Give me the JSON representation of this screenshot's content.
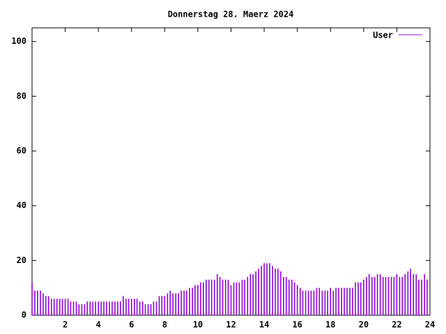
{
  "chart_data": {
    "type": "impulse",
    "title": "Donnerstag 28. Maerz 2024",
    "x": [
      0,
      0.17,
      0.33,
      0.5,
      0.67,
      0.83,
      1,
      1.17,
      1.33,
      1.5,
      1.67,
      1.83,
      2,
      2.17,
      2.33,
      2.5,
      2.67,
      2.83,
      3,
      3.17,
      3.33,
      3.5,
      3.67,
      3.83,
      4,
      4.17,
      4.33,
      4.5,
      4.67,
      4.83,
      5,
      5.17,
      5.33,
      5.5,
      5.67,
      5.83,
      6,
      6.17,
      6.33,
      6.5,
      6.67,
      6.83,
      7,
      7.17,
      7.33,
      7.5,
      7.67,
      7.83,
      8,
      8.17,
      8.33,
      8.5,
      8.67,
      8.83,
      9,
      9.17,
      9.33,
      9.5,
      9.67,
      9.83,
      10,
      10.17,
      10.33,
      10.5,
      10.67,
      10.83,
      11,
      11.17,
      11.33,
      11.5,
      11.67,
      11.83,
      12,
      12.17,
      12.33,
      12.5,
      12.67,
      12.83,
      13,
      13.17,
      13.33,
      13.5,
      13.67,
      13.83,
      14,
      14.17,
      14.33,
      14.5,
      14.67,
      14.83,
      15,
      15.17,
      15.33,
      15.5,
      15.67,
      15.83,
      16,
      16.17,
      16.33,
      16.5,
      16.67,
      16.83,
      17,
      17.17,
      17.33,
      17.5,
      17.67,
      17.83,
      18,
      18.17,
      18.33,
      18.5,
      18.67,
      18.83,
      19,
      19.17,
      19.33,
      19.5,
      19.67,
      19.83,
      20,
      20.17,
      20.33,
      20.5,
      20.67,
      20.83,
      21,
      21.17,
      21.33,
      21.5,
      21.67,
      21.83,
      22,
      22.17,
      22.33,
      22.5,
      22.67,
      22.83,
      23,
      23.17,
      23.33,
      23.5,
      23.67,
      23.83
    ],
    "series": [
      {
        "name": "User",
        "color": "#9400d3",
        "values": [
          12,
          9,
          9,
          9,
          8,
          7,
          7,
          6,
          6,
          6,
          6,
          6,
          6,
          6,
          5,
          5,
          5,
          4,
          4,
          4,
          5,
          5,
          5,
          5,
          5,
          5,
          5,
          5,
          5,
          5,
          5,
          5,
          5,
          7,
          6,
          6,
          6,
          6,
          6,
          5,
          5,
          4,
          4,
          4,
          5,
          5,
          7,
          7,
          7,
          8,
          9,
          8,
          8,
          8,
          9,
          9,
          9,
          10,
          10,
          11,
          11,
          12,
          12,
          13,
          13,
          13,
          13,
          15,
          14,
          13,
          13,
          13,
          11,
          12,
          12,
          12,
          13,
          13,
          14,
          15,
          15,
          16,
          17,
          18,
          19,
          19,
          19,
          18,
          17,
          17,
          16,
          14,
          14,
          13,
          13,
          12,
          11,
          10,
          9,
          9,
          9,
          9,
          9,
          10,
          10,
          9,
          9,
          9,
          10,
          9,
          10,
          10,
          10,
          10,
          10,
          10,
          10,
          12,
          12,
          12,
          13,
          14,
          15,
          14,
          14,
          15,
          15,
          14,
          14,
          14,
          14,
          14,
          15,
          14,
          14,
          15,
          16,
          17,
          15,
          15,
          13,
          13,
          15,
          13
        ]
      }
    ],
    "xlim": [
      0,
      24
    ],
    "xticks": [
      2,
      4,
      6,
      8,
      10,
      12,
      14,
      16,
      18,
      20,
      22,
      24
    ],
    "ylim": [
      0,
      105
    ],
    "yticks": [
      0,
      20,
      40,
      60,
      80,
      100
    ]
  }
}
